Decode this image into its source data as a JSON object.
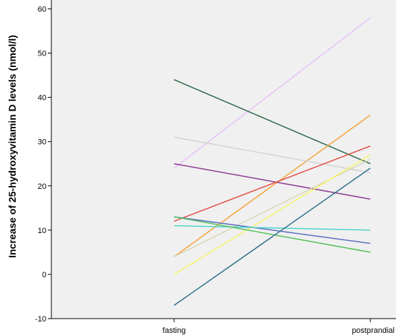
{
  "chart_data": {
    "type": "line",
    "title": "",
    "xlabel": "",
    "ylabel": "Increase of 25-hydroxyvitamin D levels  (nmol/l)",
    "categories": [
      "fasting",
      "postprandial"
    ],
    "ylim": [
      -10,
      62
    ],
    "yticks": [
      -10,
      0,
      10,
      20,
      30,
      40,
      50,
      60
    ],
    "grid": false,
    "plot_background": "#f0f0f0",
    "series": [
      {
        "values": [
          24,
          58
        ],
        "color": "#e6c3f5"
      },
      {
        "values": [
          44,
          25
        ],
        "color": "#2e6b4a"
      },
      {
        "values": [
          4,
          36
        ],
        "color": "#f5a33a"
      },
      {
        "values": [
          31,
          23
        ],
        "color": "#d3d3d3"
      },
      {
        "values": [
          25,
          17
        ],
        "color": "#8e3d93"
      },
      {
        "values": [
          12,
          29
        ],
        "color": "#e3524a"
      },
      {
        "values": [
          4,
          26
        ],
        "color": "#d9d7b3"
      },
      {
        "values": [
          0,
          27
        ],
        "color": "#f7f46a"
      },
      {
        "values": [
          13,
          7
        ],
        "color": "#5a6fc2"
      },
      {
        "values": [
          11,
          10
        ],
        "color": "#4fd3cf"
      },
      {
        "values": [
          13,
          5
        ],
        "color": "#55c15a"
      },
      {
        "values": [
          -7,
          24
        ],
        "color": "#2f6f8e"
      }
    ]
  }
}
